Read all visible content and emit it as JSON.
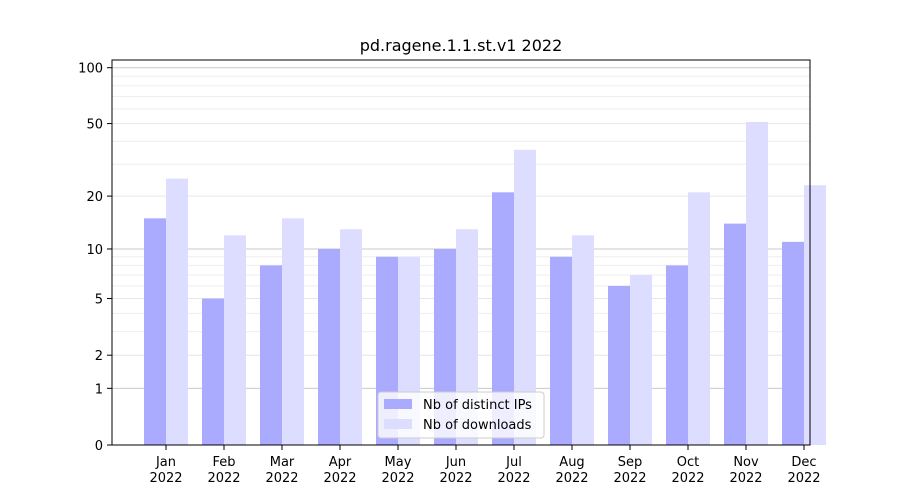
{
  "chart_data": {
    "type": "bar",
    "title": "pd.ragene.1.1.st.v1 2022",
    "xlabel": "",
    "ylabel": "",
    "yscale": "log(1+y)",
    "ylim": [
      0,
      110
    ],
    "yticks": [
      0,
      1,
      2,
      5,
      10,
      20,
      50,
      100
    ],
    "categories": [
      [
        "Jan",
        "2022"
      ],
      [
        "Feb",
        "2022"
      ],
      [
        "Mar",
        "2022"
      ],
      [
        "Apr",
        "2022"
      ],
      [
        "May",
        "2022"
      ],
      [
        "Jun",
        "2022"
      ],
      [
        "Jul",
        "2022"
      ],
      [
        "Aug",
        "2022"
      ],
      [
        "Sep",
        "2022"
      ],
      [
        "Oct",
        "2022"
      ],
      [
        "Nov",
        "2022"
      ],
      [
        "Dec",
        "2022"
      ]
    ],
    "series": [
      {
        "name": "Nb of distinct IPs",
        "color": "#aaaaff",
        "values": [
          15,
          5,
          8,
          10,
          9,
          10,
          21,
          9,
          6,
          8,
          14,
          11
        ]
      },
      {
        "name": "Nb of downloads",
        "color": "#ddddff",
        "values": [
          25,
          12,
          15,
          13,
          9,
          13,
          36,
          12,
          7,
          21,
          51,
          23
        ]
      }
    ],
    "grid": true,
    "legend_position": "bottom-center"
  }
}
